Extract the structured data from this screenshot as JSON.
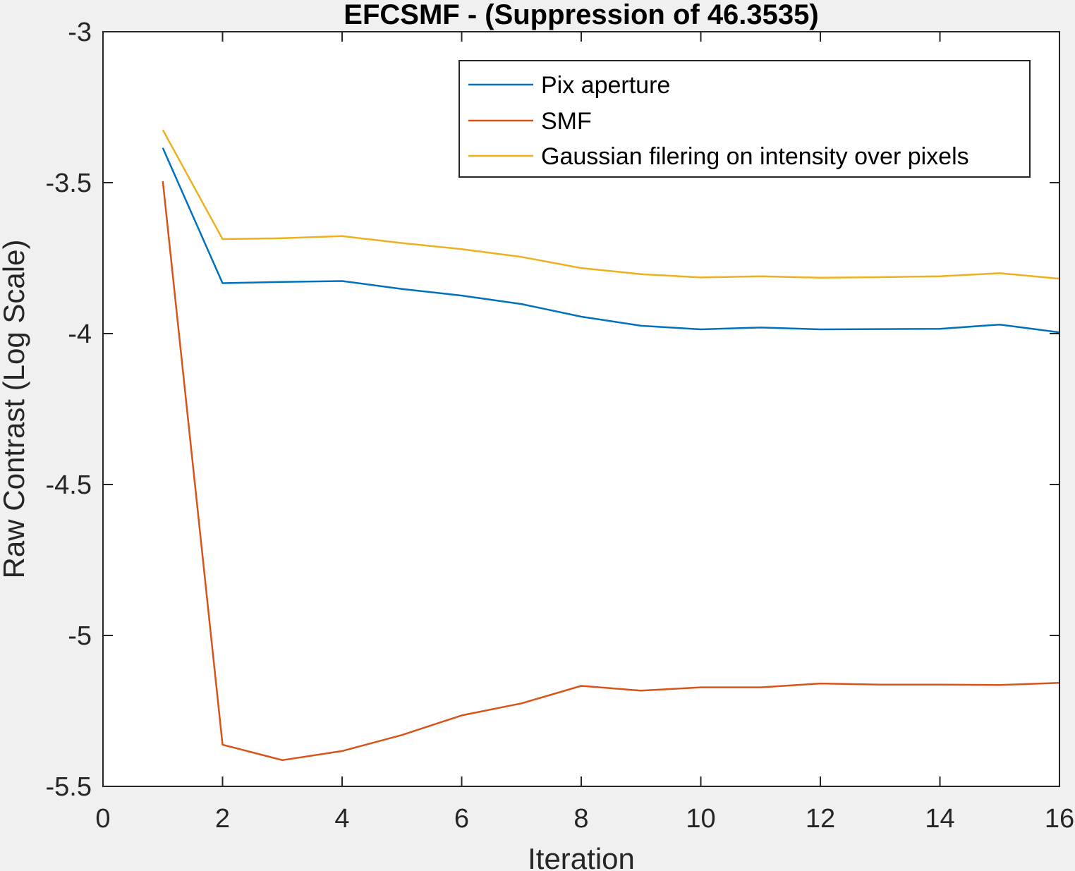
{
  "chart_data": {
    "type": "line",
    "title": "EFCSMF -  (Suppression of 46.3535)",
    "xlabel": "Iteration",
    "ylabel": "Raw Contrast (Log Scale)",
    "xlim": [
      0,
      16
    ],
    "ylim": [
      -5.5,
      -3
    ],
    "xticks": [
      0,
      2,
      4,
      6,
      8,
      10,
      12,
      14,
      16
    ],
    "xtick_labels": [
      "0",
      "2",
      "4",
      "6",
      "8",
      "10",
      "12",
      "14",
      "16"
    ],
    "yticks": [
      -3,
      -3.5,
      -4,
      -4.5,
      -5,
      -5.5
    ],
    "ytick_labels": [
      "-3",
      "-3.5",
      "-4",
      "-4.5",
      "-5",
      "-5.5"
    ],
    "grid": false,
    "legend_position": "top-right",
    "x": [
      1,
      2,
      3,
      4,
      5,
      6,
      7,
      8,
      9,
      10,
      11,
      12,
      13,
      14,
      15,
      16
    ],
    "series": [
      {
        "name": "Pix aperture",
        "color": "#0072BD",
        "values": [
          -3.385,
          -3.833,
          -3.829,
          -3.826,
          -3.852,
          -3.874,
          -3.902,
          -3.944,
          -3.974,
          -3.986,
          -3.98,
          -3.986,
          -3.985,
          -3.984,
          -3.97,
          -3.996
        ]
      },
      {
        "name": "SMF",
        "color": "#D95319",
        "values": [
          -3.495,
          -5.362,
          -5.413,
          -5.383,
          -5.33,
          -5.265,
          -5.225,
          -5.167,
          -5.183,
          -5.172,
          -5.172,
          -5.159,
          -5.163,
          -5.163,
          -5.164,
          -5.157
        ]
      },
      {
        "name": "Gaussian filering on intensity over pixels",
        "color": "#EDB120",
        "values": [
          -3.325,
          -3.687,
          -3.684,
          -3.677,
          -3.7,
          -3.72,
          -3.746,
          -3.783,
          -3.803,
          -3.814,
          -3.81,
          -3.815,
          -3.813,
          -3.81,
          -3.8,
          -3.818
        ]
      }
    ]
  }
}
